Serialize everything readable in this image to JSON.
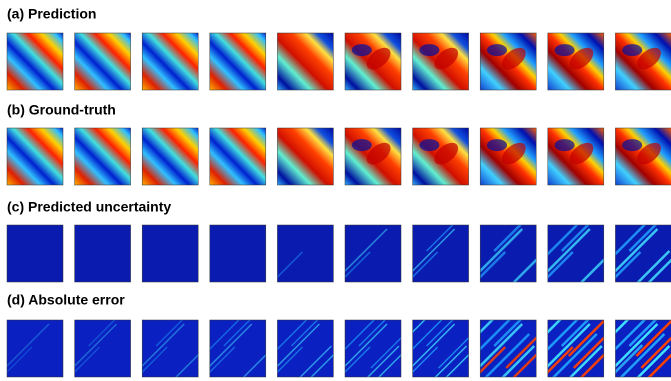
{
  "panels": [
    {
      "title": "(a) Prediction"
    },
    {
      "title": "(b) Ground-truth"
    },
    {
      "title": "(c) Predicted uncertainty"
    },
    {
      "title": "(d) Absolute error"
    }
  ]
}
